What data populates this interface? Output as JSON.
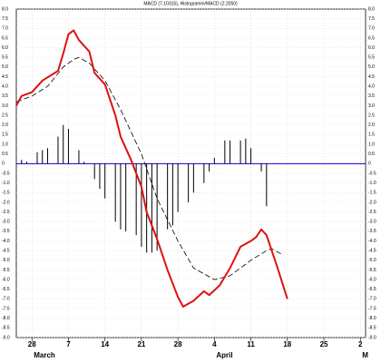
{
  "chart_data": {
    "type": "line",
    "title": "MACD (7.10315), Histogramm/MACD (2.2050)",
    "xlim": [
      -3,
      64
    ],
    "xticks": [
      {
        "value": 0,
        "label": "28"
      },
      7,
      14,
      21,
      28,
      {
        "value": 35,
        "label": "4"
      },
      {
        "value": 42,
        "label": "11"
      },
      {
        "value": 49,
        "label": "18"
      },
      {
        "value": 56,
        "label": "25"
      },
      {
        "value": 63,
        "label": "2"
      }
    ],
    "month_labels": [
      {
        "x": 0,
        "label": "March"
      },
      {
        "x": 35,
        "label": "April"
      },
      {
        "x": 63,
        "label": "M"
      }
    ],
    "ylim": [
      -9,
      8
    ],
    "yticks": [
      {
        "value": 8,
        "label": "8.0"
      },
      7.5,
      {
        "value": 7,
        "label": "7.0"
      },
      6.5,
      {
        "value": 6,
        "label": "6.0"
      },
      5.5,
      {
        "value": 5,
        "label": "5.0"
      },
      4.5,
      {
        "value": 4,
        "label": "4.0"
      },
      3.5,
      {
        "value": 3,
        "label": "3.0"
      },
      2.5,
      {
        "value": 2,
        "label": "2.0"
      },
      1.5,
      {
        "value": 1,
        "label": "1.0"
      },
      0.5,
      0,
      -0.5,
      {
        "value": -1,
        "label": "-1.0"
      },
      -1.5,
      {
        "value": -2,
        "label": "-2.0"
      },
      -2.5,
      {
        "value": -3,
        "label": "-3.0"
      },
      -3.5,
      {
        "value": -4,
        "label": "-4.0"
      },
      -4.5,
      {
        "value": -5,
        "label": "-5.0"
      },
      -5.5,
      {
        "value": -6,
        "label": "-6.0"
      },
      -6.5,
      {
        "value": -7,
        "label": "-7.0"
      },
      -7.5,
      {
        "value": -8,
        "label": "-8.0"
      },
      -8.5,
      {
        "value": -9,
        "label": "-9.0"
      }
    ],
    "grid": true,
    "zero_line_color": "#0000cc",
    "series": [
      {
        "name": "MACD",
        "color": "#e01010",
        "style": "solid",
        "x": [
          -3,
          -2,
          0,
          2,
          5,
          6,
          7,
          8,
          9,
          11,
          12,
          14,
          16,
          17,
          19,
          21,
          22,
          24,
          26,
          28,
          29,
          31,
          33,
          34,
          36,
          38,
          40,
          42,
          43,
          44,
          45,
          47,
          49
        ],
        "values": [
          3.0,
          3.5,
          3.7,
          4.3,
          4.8,
          5.7,
          6.7,
          6.9,
          6.4,
          5.8,
          4.7,
          4.1,
          2.5,
          1.4,
          0.2,
          -1.2,
          -2.5,
          -3.9,
          -5.5,
          -6.9,
          -7.4,
          -7.1,
          -6.6,
          -6.8,
          -6.3,
          -5.4,
          -4.3,
          -4.0,
          -3.8,
          -3.4,
          -3.7,
          -5.3,
          -7.0
        ]
      },
      {
        "name": "Signal",
        "color": "#000000",
        "style": "dashed",
        "x": [
          -3,
          0,
          3,
          6,
          8,
          9,
          11,
          14,
          17,
          21,
          24,
          28,
          31,
          35,
          38,
          42,
          45,
          46,
          48
        ],
        "values": [
          3.2,
          3.5,
          4.0,
          5.0,
          5.4,
          5.5,
          5.2,
          4.3,
          2.8,
          0.5,
          -1.8,
          -4.0,
          -5.4,
          -6.0,
          -5.8,
          -5.0,
          -4.5,
          -4.4,
          -4.7
        ]
      }
    ],
    "histogram": {
      "color": "#000000",
      "x": [
        -2,
        -1,
        1,
        2,
        3,
        5,
        6,
        7,
        9,
        10,
        12,
        13,
        14,
        16,
        17,
        18,
        20,
        21,
        22,
        23,
        24,
        26,
        27,
        28,
        30,
        31,
        33,
        34,
        35,
        37,
        38,
        40,
        41,
        42,
        44,
        45
      ],
      "values": [
        0.2,
        0.1,
        0.6,
        0.7,
        0.8,
        1.4,
        2.0,
        1.8,
        0.7,
        0.1,
        -0.8,
        -1.3,
        -1.8,
        -3.0,
        -3.4,
        -3.5,
        -3.7,
        -4.3,
        -4.6,
        -4.6,
        -4.5,
        -3.4,
        -3.2,
        -2.5,
        -2.0,
        -1.5,
        -1.0,
        -0.4,
        0.3,
        1.2,
        1.2,
        1.2,
        1.3,
        0.8,
        -0.4,
        -2.2
      ]
    }
  }
}
